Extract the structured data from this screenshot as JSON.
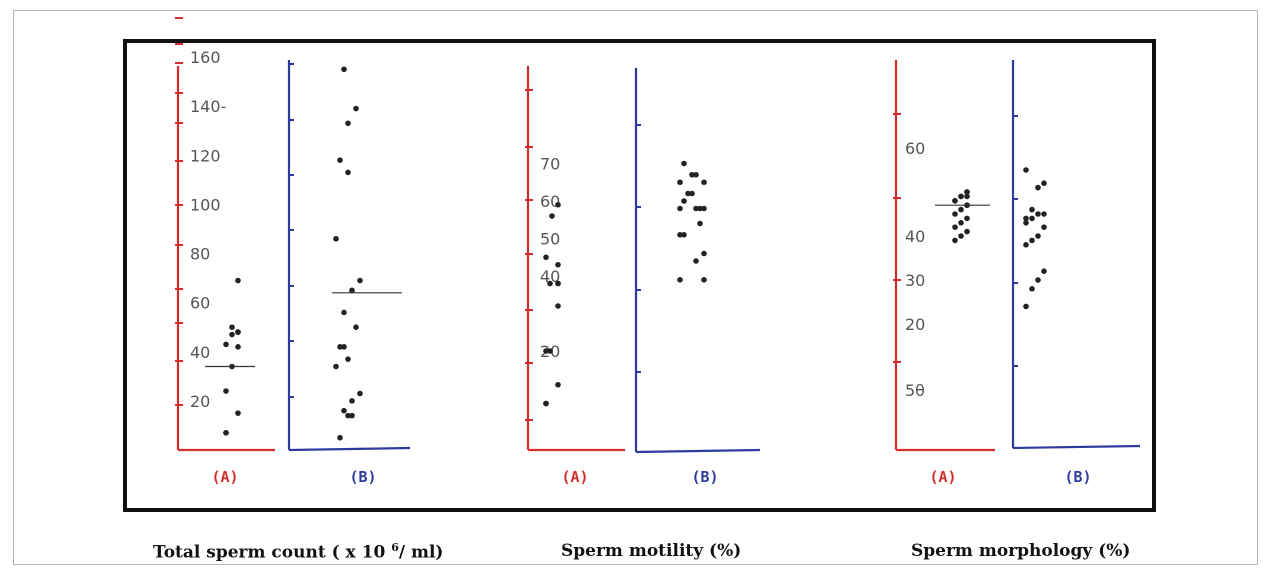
{
  "colors": {
    "group_a": "#d62b2b",
    "group_b": "#2e3a9e",
    "frame": "#111111",
    "dot": "#222222",
    "tick_text": "#555555"
  },
  "captions": {
    "count_prefix": "Total sperm count ( x 10",
    "count_exponent": "6",
    "count_suffix": "/ ml)",
    "motility": "Sperm motility (%)",
    "morphology": "Sperm morphology (%)"
  },
  "chart_data": [
    {
      "type": "scatter",
      "title": "Total sperm count ( x 10 6 / ml)",
      "tick_labels": [
        "20",
        "40",
        "60",
        "80",
        "100",
        "120",
        "140-",
        "160"
      ],
      "ylim": [
        0,
        160
      ],
      "series": [
        {
          "name": "(A)",
          "mean": 34,
          "values": [
            7,
            7,
            15,
            24,
            34,
            42,
            43,
            47,
            48,
            48,
            50,
            69
          ]
        },
        {
          "name": "(B)",
          "mean": 64,
          "values": [
            5,
            14,
            14,
            16,
            20,
            23,
            34,
            37,
            42,
            42,
            50,
            56,
            65,
            69,
            86,
            113,
            118,
            133,
            139,
            155
          ]
        }
      ]
    },
    {
      "type": "scatter",
      "title": "Sperm motility (%)",
      "tick_labels": [
        "20",
        "40",
        "50",
        "60",
        "70"
      ],
      "ylim": [
        0,
        80
      ],
      "series": [
        {
          "name": "(A)",
          "values": [
            6,
            6,
            11,
            20,
            20,
            32,
            38,
            38,
            38,
            43,
            45,
            56,
            59
          ]
        },
        {
          "name": "(B)",
          "values": [
            39,
            39,
            44,
            46,
            51,
            51,
            54,
            58,
            58,
            58,
            58,
            60,
            62,
            62,
            65,
            65,
            67,
            67,
            70
          ]
        }
      ]
    },
    {
      "type": "scatter",
      "title": "Sperm morphology (%)",
      "tick_labels": [
        "20",
        "30",
        "40",
        "5θ",
        "60"
      ],
      "ylim": [
        10,
        70
      ],
      "series": [
        {
          "name": "(A)",
          "mean": 47,
          "values": [
            39,
            40,
            41,
            42,
            43,
            44,
            45,
            46,
            47,
            48,
            49,
            50,
            47,
            48,
            49,
            50,
            49
          ]
        },
        {
          "name": "(B)",
          "values": [
            24,
            28,
            30,
            32,
            38,
            39,
            40,
            42,
            43,
            44,
            44,
            45,
            45,
            46,
            51,
            52,
            55
          ]
        }
      ]
    }
  ]
}
